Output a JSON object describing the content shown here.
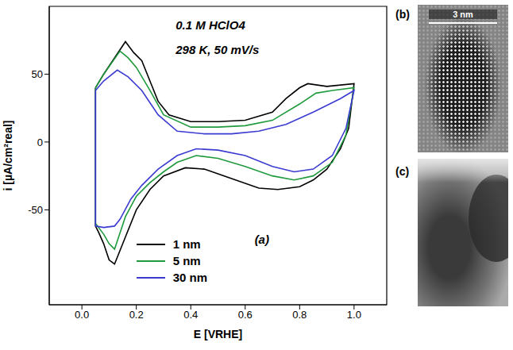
{
  "chart_data": {
    "type": "line",
    "xlabel": "E [VRHE]",
    "ylabel": "i [µA/cm²real]",
    "annotations": [
      "0.1 M HClO4",
      "298 K, 50 mV/s",
      "(a)"
    ],
    "xlim": [
      -0.12,
      1.12
    ],
    "xticks": [
      {
        "value": 0,
        "label": "0.0"
      },
      0.2,
      0.4,
      0.6,
      0.8,
      {
        "value": 1,
        "label": "1.0"
      }
    ],
    "ylim": [
      -120,
      100
    ],
    "yticks": [
      -50,
      0,
      50
    ],
    "legend": "lower left",
    "series": [
      {
        "name": "1 nm",
        "color": "#000000",
        "x": [
          0.05,
          0.08,
          0.12,
          0.16,
          0.19,
          0.22,
          0.25,
          0.28,
          0.32,
          0.4,
          0.5,
          0.6,
          0.7,
          0.75,
          0.8,
          0.83,
          0.9,
          1.0,
          0.98,
          0.95,
          0.9,
          0.85,
          0.8,
          0.72,
          0.65,
          0.55,
          0.45,
          0.38,
          0.3,
          0.25,
          0.2,
          0.16,
          0.12,
          0.1,
          0.08,
          0.06,
          0.05,
          0.05
        ],
        "values": [
          40,
          50,
          62,
          74,
          66,
          60,
          45,
          30,
          20,
          15,
          15,
          16,
          22,
          32,
          40,
          43,
          41,
          43,
          10,
          -5,
          -20,
          -28,
          -33,
          -35,
          -34,
          -27,
          -20,
          -19,
          -25,
          -35,
          -50,
          -70,
          -90,
          -87,
          -75,
          -66,
          -62,
          40
        ]
      },
      {
        "name": "5 nm",
        "color": "#1f9a3c",
        "x": [
          0.05,
          0.08,
          0.14,
          0.17,
          0.2,
          0.25,
          0.3,
          0.4,
          0.5,
          0.6,
          0.7,
          0.8,
          0.86,
          0.92,
          1.0,
          0.97,
          0.92,
          0.85,
          0.78,
          0.7,
          0.6,
          0.5,
          0.42,
          0.35,
          0.3,
          0.25,
          0.2,
          0.16,
          0.12,
          0.1,
          0.08,
          0.05,
          0.05
        ],
        "values": [
          40,
          50,
          67,
          62,
          55,
          38,
          20,
          11,
          11,
          12,
          16,
          28,
          36,
          38,
          40,
          5,
          -15,
          -25,
          -28,
          -25,
          -18,
          -12,
          -10,
          -15,
          -22,
          -30,
          -40,
          -55,
          -79,
          -75,
          -68,
          -60,
          40
        ]
      },
      {
        "name": "30 nm",
        "color": "#3b3bd1",
        "x": [
          0.05,
          0.08,
          0.13,
          0.17,
          0.22,
          0.28,
          0.35,
          0.45,
          0.55,
          0.65,
          0.75,
          0.85,
          0.95,
          1.0,
          0.97,
          0.92,
          0.85,
          0.78,
          0.7,
          0.6,
          0.5,
          0.42,
          0.35,
          0.28,
          0.22,
          0.18,
          0.14,
          0.12,
          0.08,
          0.05,
          0.05
        ],
        "values": [
          38,
          45,
          53,
          48,
          38,
          20,
          8,
          6,
          6,
          8,
          13,
          22,
          32,
          38,
          10,
          -10,
          -20,
          -22,
          -18,
          -10,
          -6,
          -5,
          -10,
          -20,
          -32,
          -42,
          -57,
          -62,
          -63,
          -62,
          38
        ]
      }
    ]
  },
  "images": [
    {
      "label": "(b)",
      "scale_bar": "3 nm"
    },
    {
      "label": "(c)"
    }
  ]
}
